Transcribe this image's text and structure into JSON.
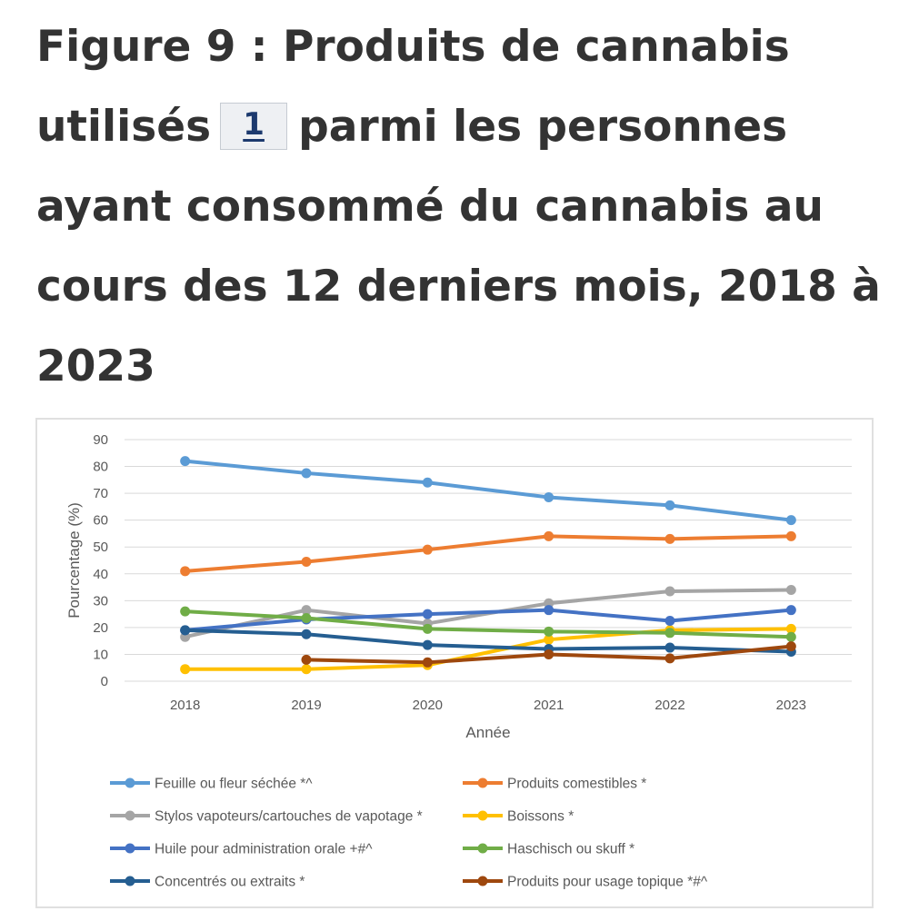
{
  "title": {
    "line1": "Figure 9 : Produits de cannabis",
    "line2_pre": "utilisés",
    "footnote_ref": "1",
    "line2_post": "parmi les personnes",
    "line3": "ayant consommé du cannabis au",
    "line4": "cours des 12 derniers mois, 2018 à",
    "line5": "2023"
  },
  "chart_data": {
    "type": "line",
    "title": "",
    "xlabel": "Année",
    "ylabel": "Pourcentage (%)",
    "ylim": [
      0,
      90
    ],
    "yticks": [
      0,
      10,
      20,
      30,
      40,
      50,
      60,
      70,
      80,
      90
    ],
    "grid": true,
    "legend_position": "bottom",
    "categories": [
      "2018",
      "2019",
      "2020",
      "2021",
      "2022",
      "2023"
    ],
    "series": [
      {
        "name": "Feuille ou fleur séchée *^",
        "color": "#5b9bd5",
        "values": [
          82,
          77.5,
          74,
          68.5,
          65.5,
          60
        ]
      },
      {
        "name": "Produits comestibles *",
        "color": "#ed7d31",
        "values": [
          41,
          44.5,
          49,
          54,
          53,
          54
        ]
      },
      {
        "name": "Stylos vapoteurs/cartouches de vapotage *",
        "color": "#a5a5a5",
        "values": [
          16.5,
          26.5,
          21.5,
          29,
          33.5,
          34
        ]
      },
      {
        "name": "Boissons *",
        "color": "#ffc000",
        "values": [
          4.5,
          4.5,
          6,
          15.5,
          19,
          19.5
        ]
      },
      {
        "name": "Huile pour administration orale +#^",
        "color": "#4472c4",
        "values": [
          19,
          23,
          25,
          26.5,
          22.5,
          26.5
        ]
      },
      {
        "name": "Haschisch ou skuff *",
        "color": "#70ad47",
        "values": [
          26,
          23.5,
          19.5,
          18.5,
          18,
          16.5
        ]
      },
      {
        "name": "Concentrés ou extraits *",
        "color": "#255e91",
        "values": [
          19,
          17.5,
          13.5,
          12,
          12.5,
          11
        ]
      },
      {
        "name": "Produits pour usage topique *#^",
        "color": "#9e480e",
        "values": [
          null,
          8,
          7,
          10,
          8.5,
          13
        ]
      }
    ]
  }
}
